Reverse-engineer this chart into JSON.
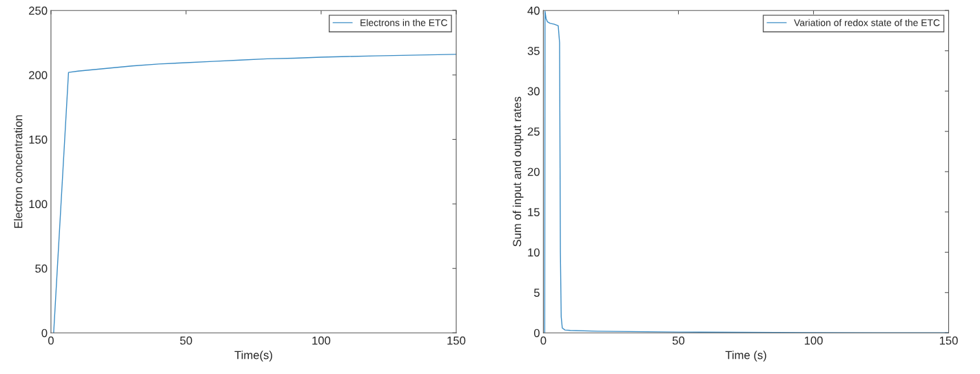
{
  "chart_data": [
    {
      "type": "line",
      "xlabel": "Time(s)",
      "ylabel": "Electron concentration",
      "xlim": [
        0,
        150
      ],
      "ylim": [
        0,
        250
      ],
      "xticks": [
        0,
        50,
        100,
        150
      ],
      "yticks": [
        0,
        50,
        100,
        150,
        200,
        250
      ],
      "legend": "top right",
      "grid": false,
      "series": [
        {
          "name": "Electrons in the ETC",
          "color": "#3c8dc5",
          "x": [
            1,
            6.5,
            10,
            20,
            30,
            40,
            50,
            60,
            70,
            80,
            90,
            100,
            110,
            120,
            130,
            140,
            150
          ],
          "values": [
            0,
            202,
            203,
            205,
            207,
            208.5,
            209.5,
            210.5,
            211.5,
            212.5,
            213,
            213.8,
            214.3,
            214.8,
            215.2,
            215.6,
            216
          ]
        }
      ]
    },
    {
      "type": "line",
      "xlabel": "Time (s)",
      "ylabel": "Sum of input and output rates",
      "xlim": [
        0,
        150
      ],
      "ylim": [
        0,
        40
      ],
      "xticks": [
        0,
        50,
        100,
        150
      ],
      "yticks": [
        0,
        5,
        10,
        15,
        20,
        25,
        30,
        35,
        40
      ],
      "legend": "top right",
      "grid": false,
      "series": [
        {
          "name": "Variation of redox state of the ETC",
          "color": "#3c8dc5",
          "x": [
            0.5,
            0.6,
            1,
            1.5,
            2.5,
            4,
            5.5,
            6,
            6.3,
            6.6,
            7,
            8,
            10,
            20,
            50,
            100,
            150
          ],
          "values": [
            0,
            39.9,
            39,
            38.6,
            38.4,
            38.3,
            38.1,
            36,
            10,
            2,
            0.6,
            0.35,
            0.3,
            0.2,
            0.1,
            0.03,
            0
          ]
        }
      ]
    }
  ]
}
